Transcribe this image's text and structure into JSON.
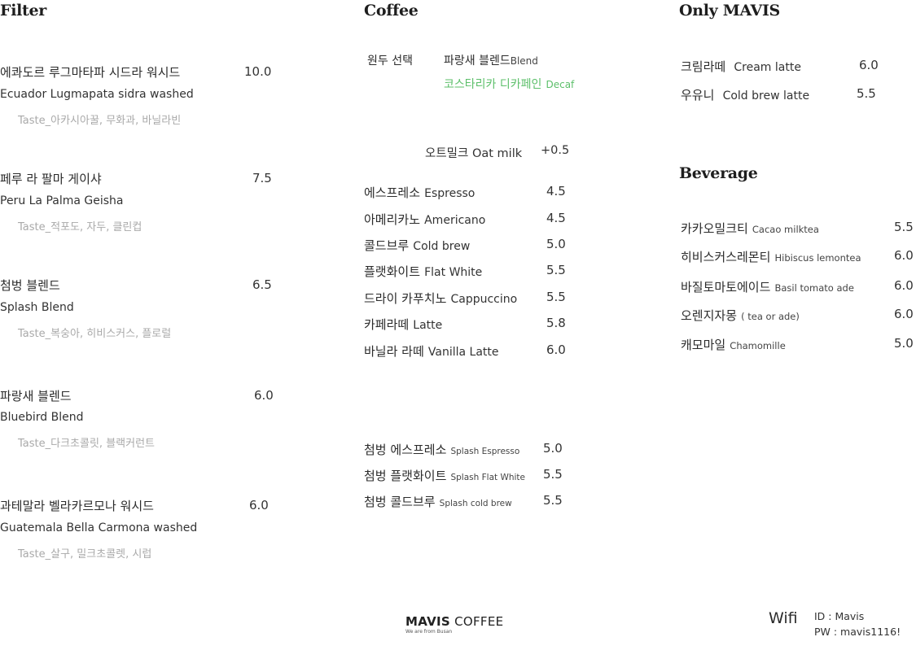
{
  "filter": {
    "heading": "Filter",
    "items": [
      {
        "ko": "에콰도르 루그마타파 시드라 워시드",
        "en": "Ecuador Lugmapata sidra washed",
        "taste": "Taste_아카시아꿀, 무화과, 바닐라빈",
        "price": "10.0"
      },
      {
        "ko": "페루 라 팔마 게이샤",
        "en": "Peru La Palma Geisha",
        "taste": "Taste_적포도, 자두, 클린컵",
        "price": "7.5"
      },
      {
        "ko": "첨벙 블렌드",
        "en": "Splash Blend",
        "taste": "Taste_복숭아, 히비스커스, 플로럴",
        "price": "6.5"
      },
      {
        "ko": "파랑새 블렌드",
        "en": "Bluebird Blend",
        "taste": "Taste_다크초콜릿, 블랙커런트",
        "price": "6.0"
      },
      {
        "ko": "과테말라 벨라카르모나 워시드",
        "en": "Guatemala Bella Carmona washed",
        "taste": "Taste_살구, 밀크초콜렛, 시럽",
        "price": "6.0"
      }
    ]
  },
  "coffee": {
    "heading": "Coffee",
    "bean_label": "원두 선택",
    "bean_option1_ko": "파랑새 블렌드",
    "bean_option1_en": "Blend",
    "bean_option2_ko": "코스타리카 디카페인",
    "bean_option2_en": "Decaf",
    "oat_milk": "오트밀크 Oat milk",
    "oat_price": "+0.5",
    "items": [
      {
        "ko": "에스프레소",
        "en": "Espresso",
        "price": "4.5"
      },
      {
        "ko": "아메리카노",
        "en": "Americano",
        "price": "4.5"
      },
      {
        "ko": "콜드브루",
        "en": "Cold brew",
        "price": "5.0"
      },
      {
        "ko": "플랫화이트",
        "en": "Flat White",
        "price": "5.5"
      },
      {
        "ko": "드라이 카푸치노",
        "en": "Cappuccino",
        "price": "5.5"
      },
      {
        "ko": "카페라떼",
        "en": "Latte",
        "price": "5.8"
      },
      {
        "ko": "바닐라 라떼",
        "en": "Vanilla Latte",
        "price": "6.0"
      }
    ],
    "splash_items": [
      {
        "ko": "첨벙 에스프레소",
        "en": "Splash Espresso",
        "price": "5.0"
      },
      {
        "ko": "첨벙 플랫화이트",
        "en": "Splash Flat White",
        "price": "5.5"
      },
      {
        "ko": "첨벙 콜드브루",
        "en": "Splash cold brew",
        "price": "5.5"
      }
    ]
  },
  "only_mavis": {
    "heading": "Only MAVIS",
    "items": [
      {
        "ko": "크림라떼",
        "en": "Cream latte",
        "price": "6.0"
      },
      {
        "ko": "우유니",
        "en": "Cold brew latte",
        "price": "5.5"
      }
    ]
  },
  "beverage": {
    "heading": "Beverage",
    "items": [
      {
        "ko": "카카오밀크티",
        "en": "Cacao milktea",
        "price": "5.5"
      },
      {
        "ko": "히비스커스레몬티",
        "en": "Hibiscus lemontea",
        "price": "6.0"
      },
      {
        "ko": "바질토마토에이드",
        "en": "Basil tomato ade",
        "price": "6.0"
      },
      {
        "ko": "오렌지자몽",
        "en": "( tea or ade)",
        "price": "6.0"
      },
      {
        "ko": "캐모마일",
        "en": "Chamomille",
        "price": "5.0"
      }
    ]
  },
  "footer": {
    "brand_bold": "MAVIS",
    "brand_rest": "COFFEE",
    "tagline": "We are from Busan",
    "wifi_label": "Wifi",
    "wifi_id": "ID : Mavis",
    "wifi_pw": "PW : mavis1116!"
  }
}
